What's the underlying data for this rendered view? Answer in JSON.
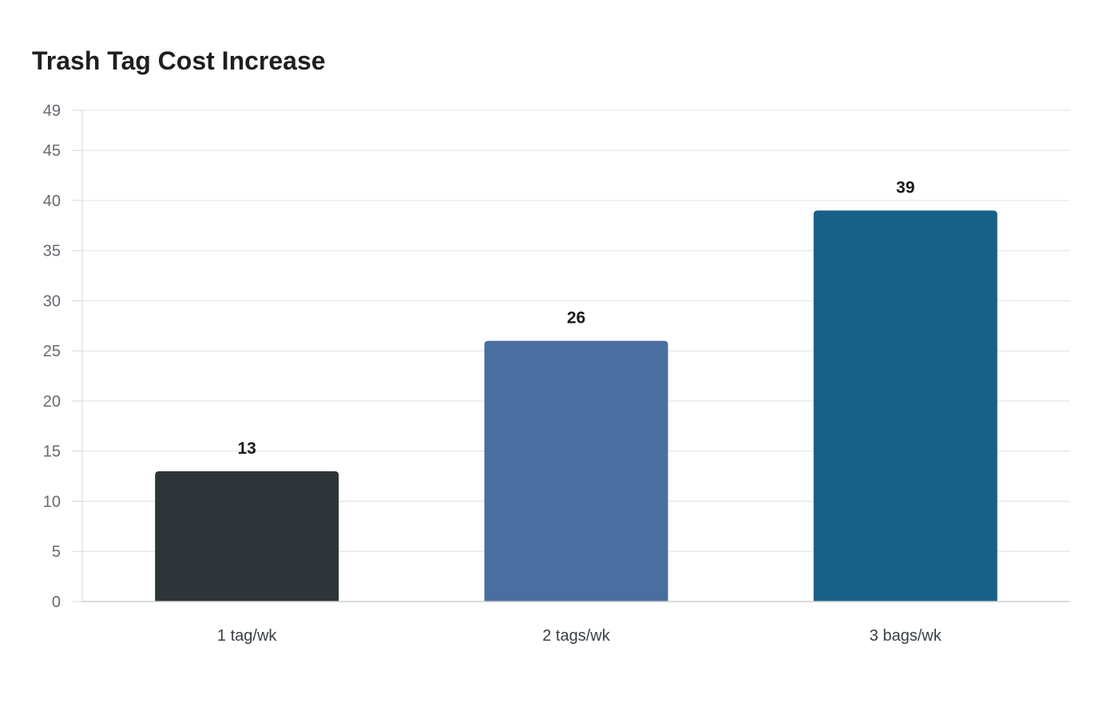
{
  "chart_data": {
    "type": "bar",
    "title": "Trash Tag Cost Increase",
    "xlabel": "",
    "ylabel": "",
    "categories": [
      "1 tag/wk",
      "2 tags/wk",
      "3 bags/wk"
    ],
    "values": [
      13,
      26,
      39
    ],
    "bar_colors": [
      "#2e3538",
      "#4a6da2",
      "#186087"
    ],
    "ylim": [
      0,
      49
    ],
    "yticks": [
      0,
      5,
      10,
      15,
      20,
      25,
      30,
      35,
      40,
      45,
      49
    ],
    "grid": true,
    "legend": "none",
    "data_labels": true
  }
}
